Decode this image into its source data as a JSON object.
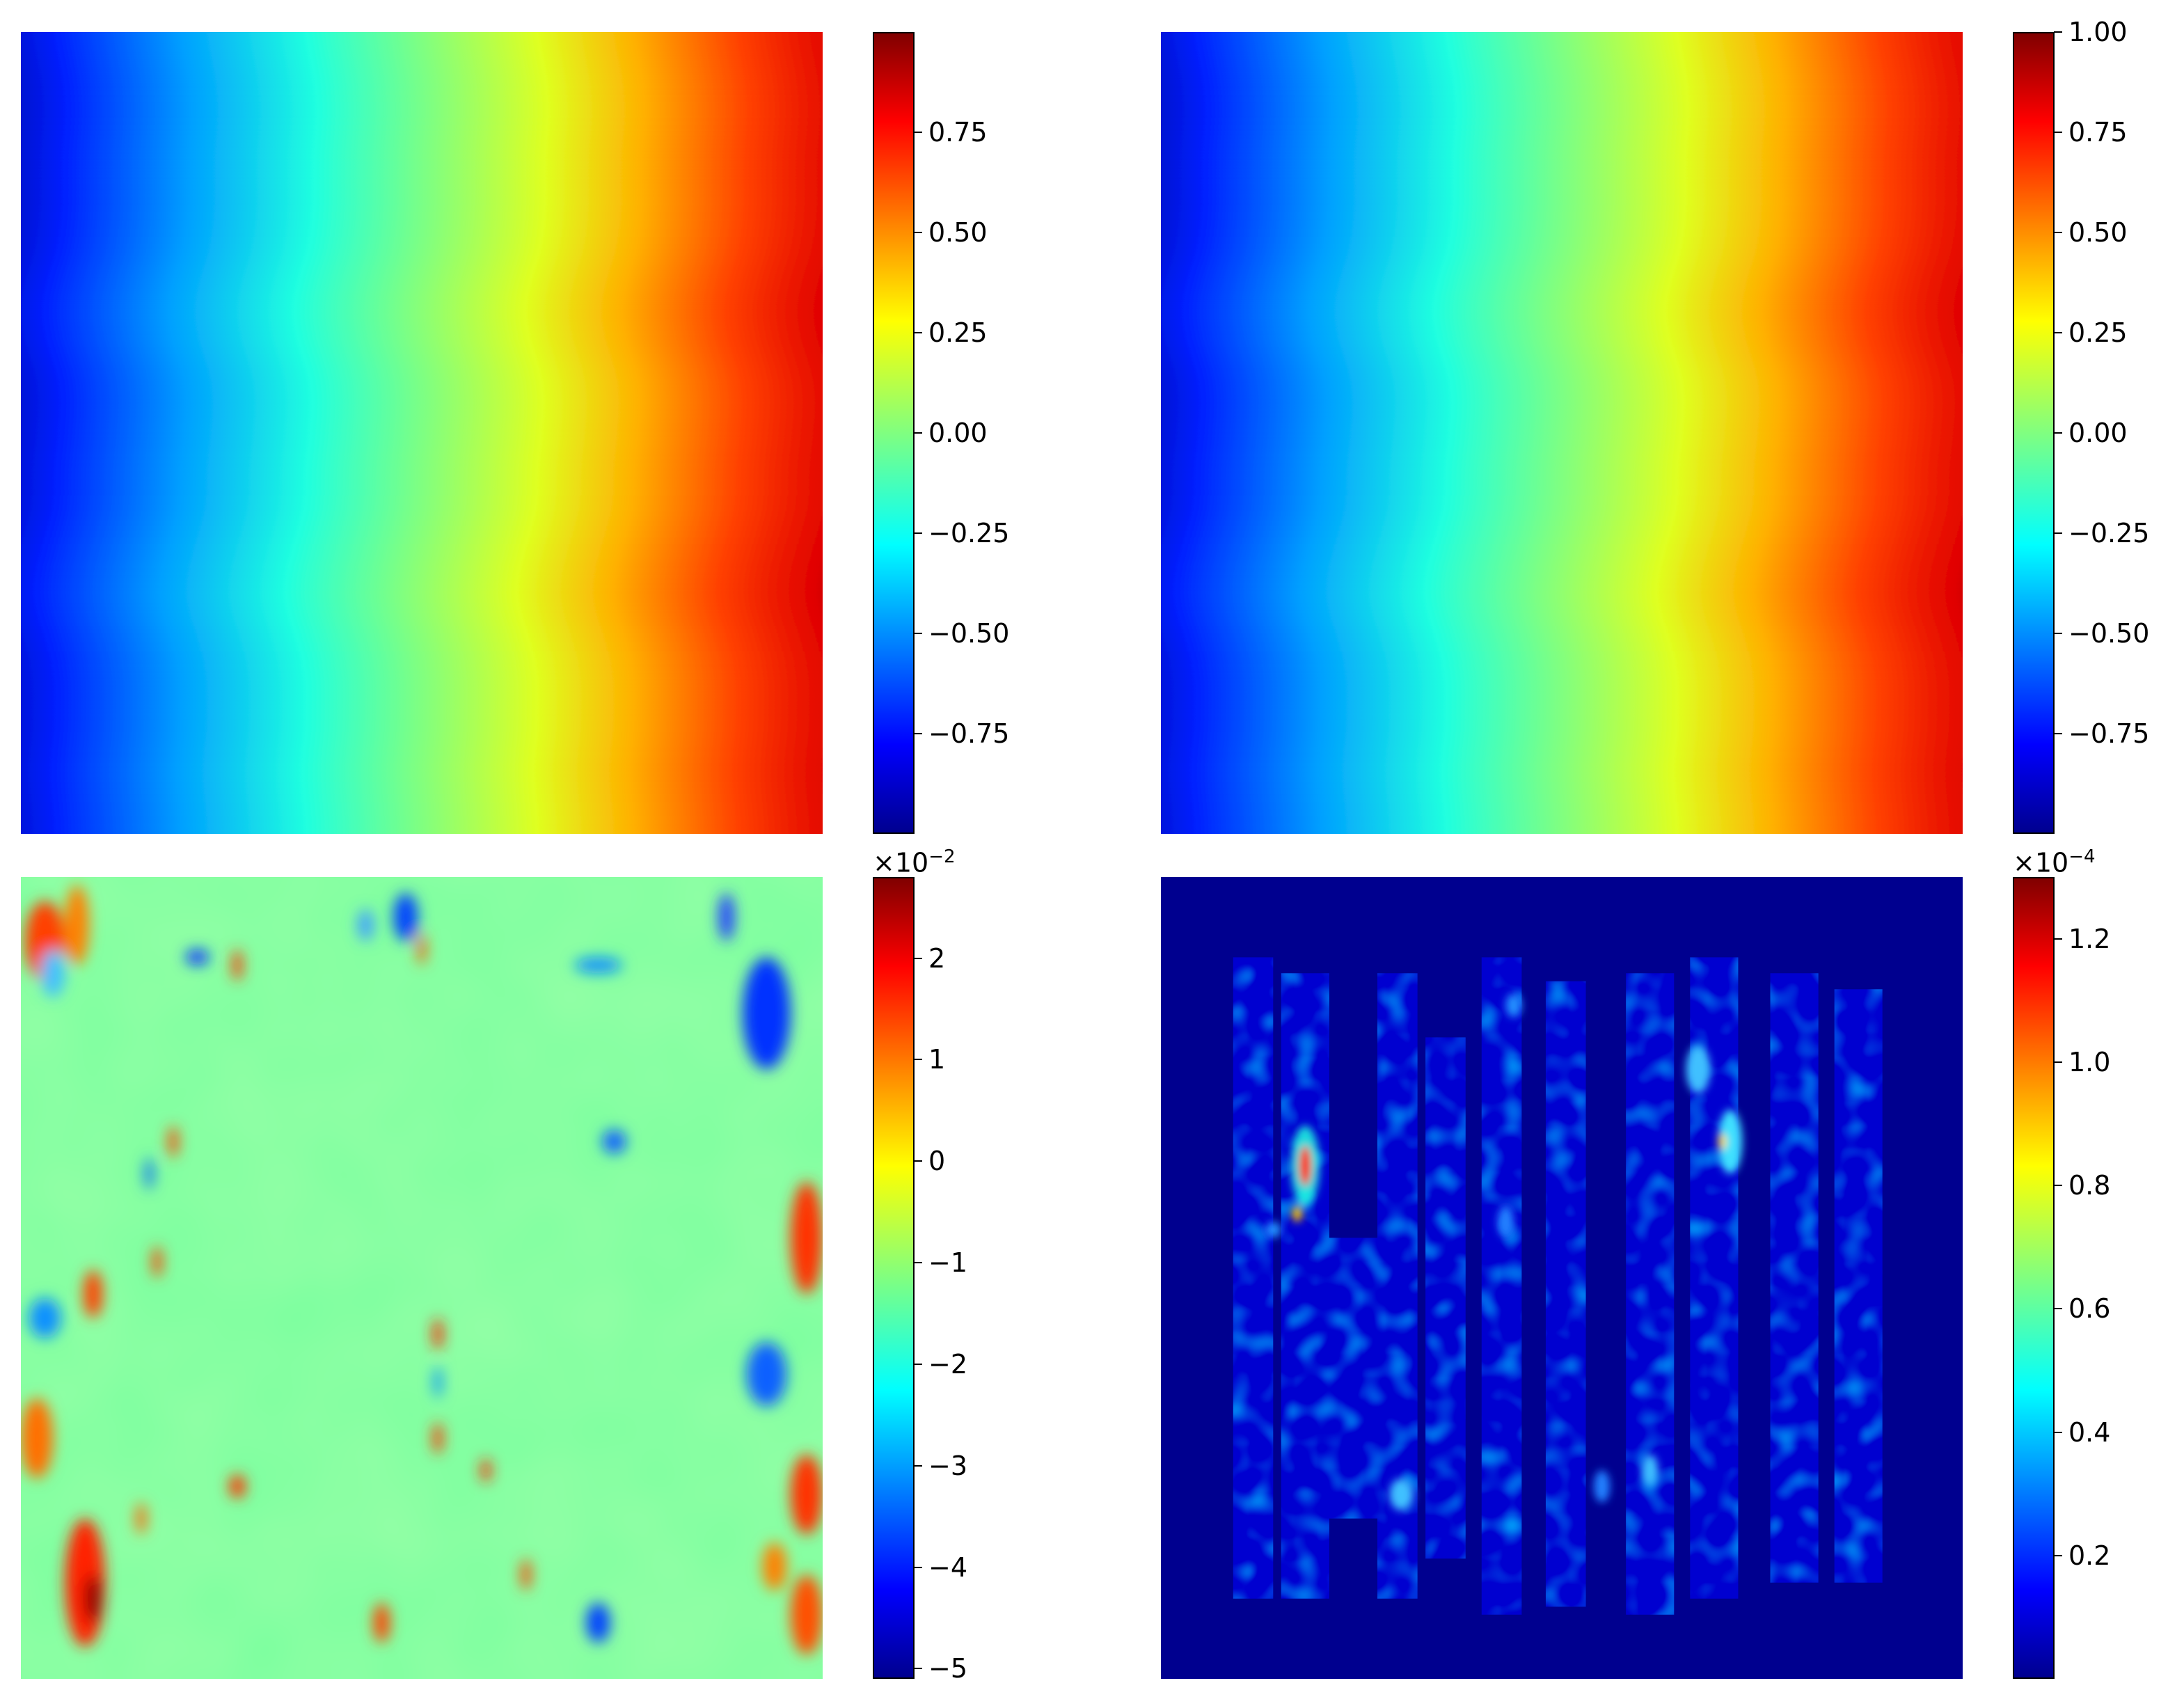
{
  "chart_data": [
    {
      "type": "heatmap",
      "position": "top-left",
      "colormap": "jet",
      "colorbar": {
        "vmin": -1.0,
        "vmax": 1.0,
        "ticks": [
          "0.75",
          "0.50",
          "0.25",
          "0.00",
          "−0.25",
          "−0.50",
          "−0.75"
        ],
        "tick_values": [
          0.75,
          0.5,
          0.25,
          0.0,
          -0.25,
          -0.5,
          -0.75
        ],
        "multiplier": ""
      },
      "field": "horizontal gradient from -1 (left) to 1 (right) with wavy vertical contours"
    },
    {
      "type": "heatmap",
      "position": "top-right",
      "colormap": "jet",
      "colorbar": {
        "vmin": -1.0,
        "vmax": 1.0,
        "ticks": [
          "1.00",
          "0.75",
          "0.50",
          "0.25",
          "0.00",
          "−0.25",
          "−0.50",
          "−0.75"
        ],
        "tick_values": [
          1.0,
          0.75,
          0.5,
          0.25,
          0.0,
          -0.25,
          -0.5,
          -0.75
        ],
        "multiplier": ""
      },
      "field": "horizontal gradient from -1 (left) to 1 (right) with wavy vertical contours"
    },
    {
      "type": "heatmap",
      "position": "bottom-left",
      "colormap": "jet",
      "colorbar": {
        "vmin": -5.1,
        "vmax": 2.8,
        "ticks": [
          "2",
          "1",
          "0",
          "−1",
          "−2",
          "−3",
          "−4",
          "−5"
        ],
        "tick_values": [
          2,
          1,
          0,
          -1,
          -2,
          -3,
          -4,
          -5
        ],
        "multiplier": "×10",
        "multiplier_exp": "−2"
      },
      "field": "mostly near zero with strong positive/negative blobs along the left and right edges"
    },
    {
      "type": "heatmap",
      "position": "bottom-right",
      "colormap": "jet",
      "colorbar": {
        "vmin": 0.0,
        "vmax": 1.3,
        "ticks": [
          "1.2",
          "1.0",
          "0.8",
          "0.6",
          "0.4",
          "0.2"
        ],
        "tick_values": [
          1.2,
          1.0,
          0.8,
          0.6,
          0.4,
          0.2
        ],
        "multiplier": "×10",
        "multiplier_exp": "−4"
      },
      "field": "near-zero background with speckled vertical streaks of low values and a few hot spots"
    }
  ]
}
